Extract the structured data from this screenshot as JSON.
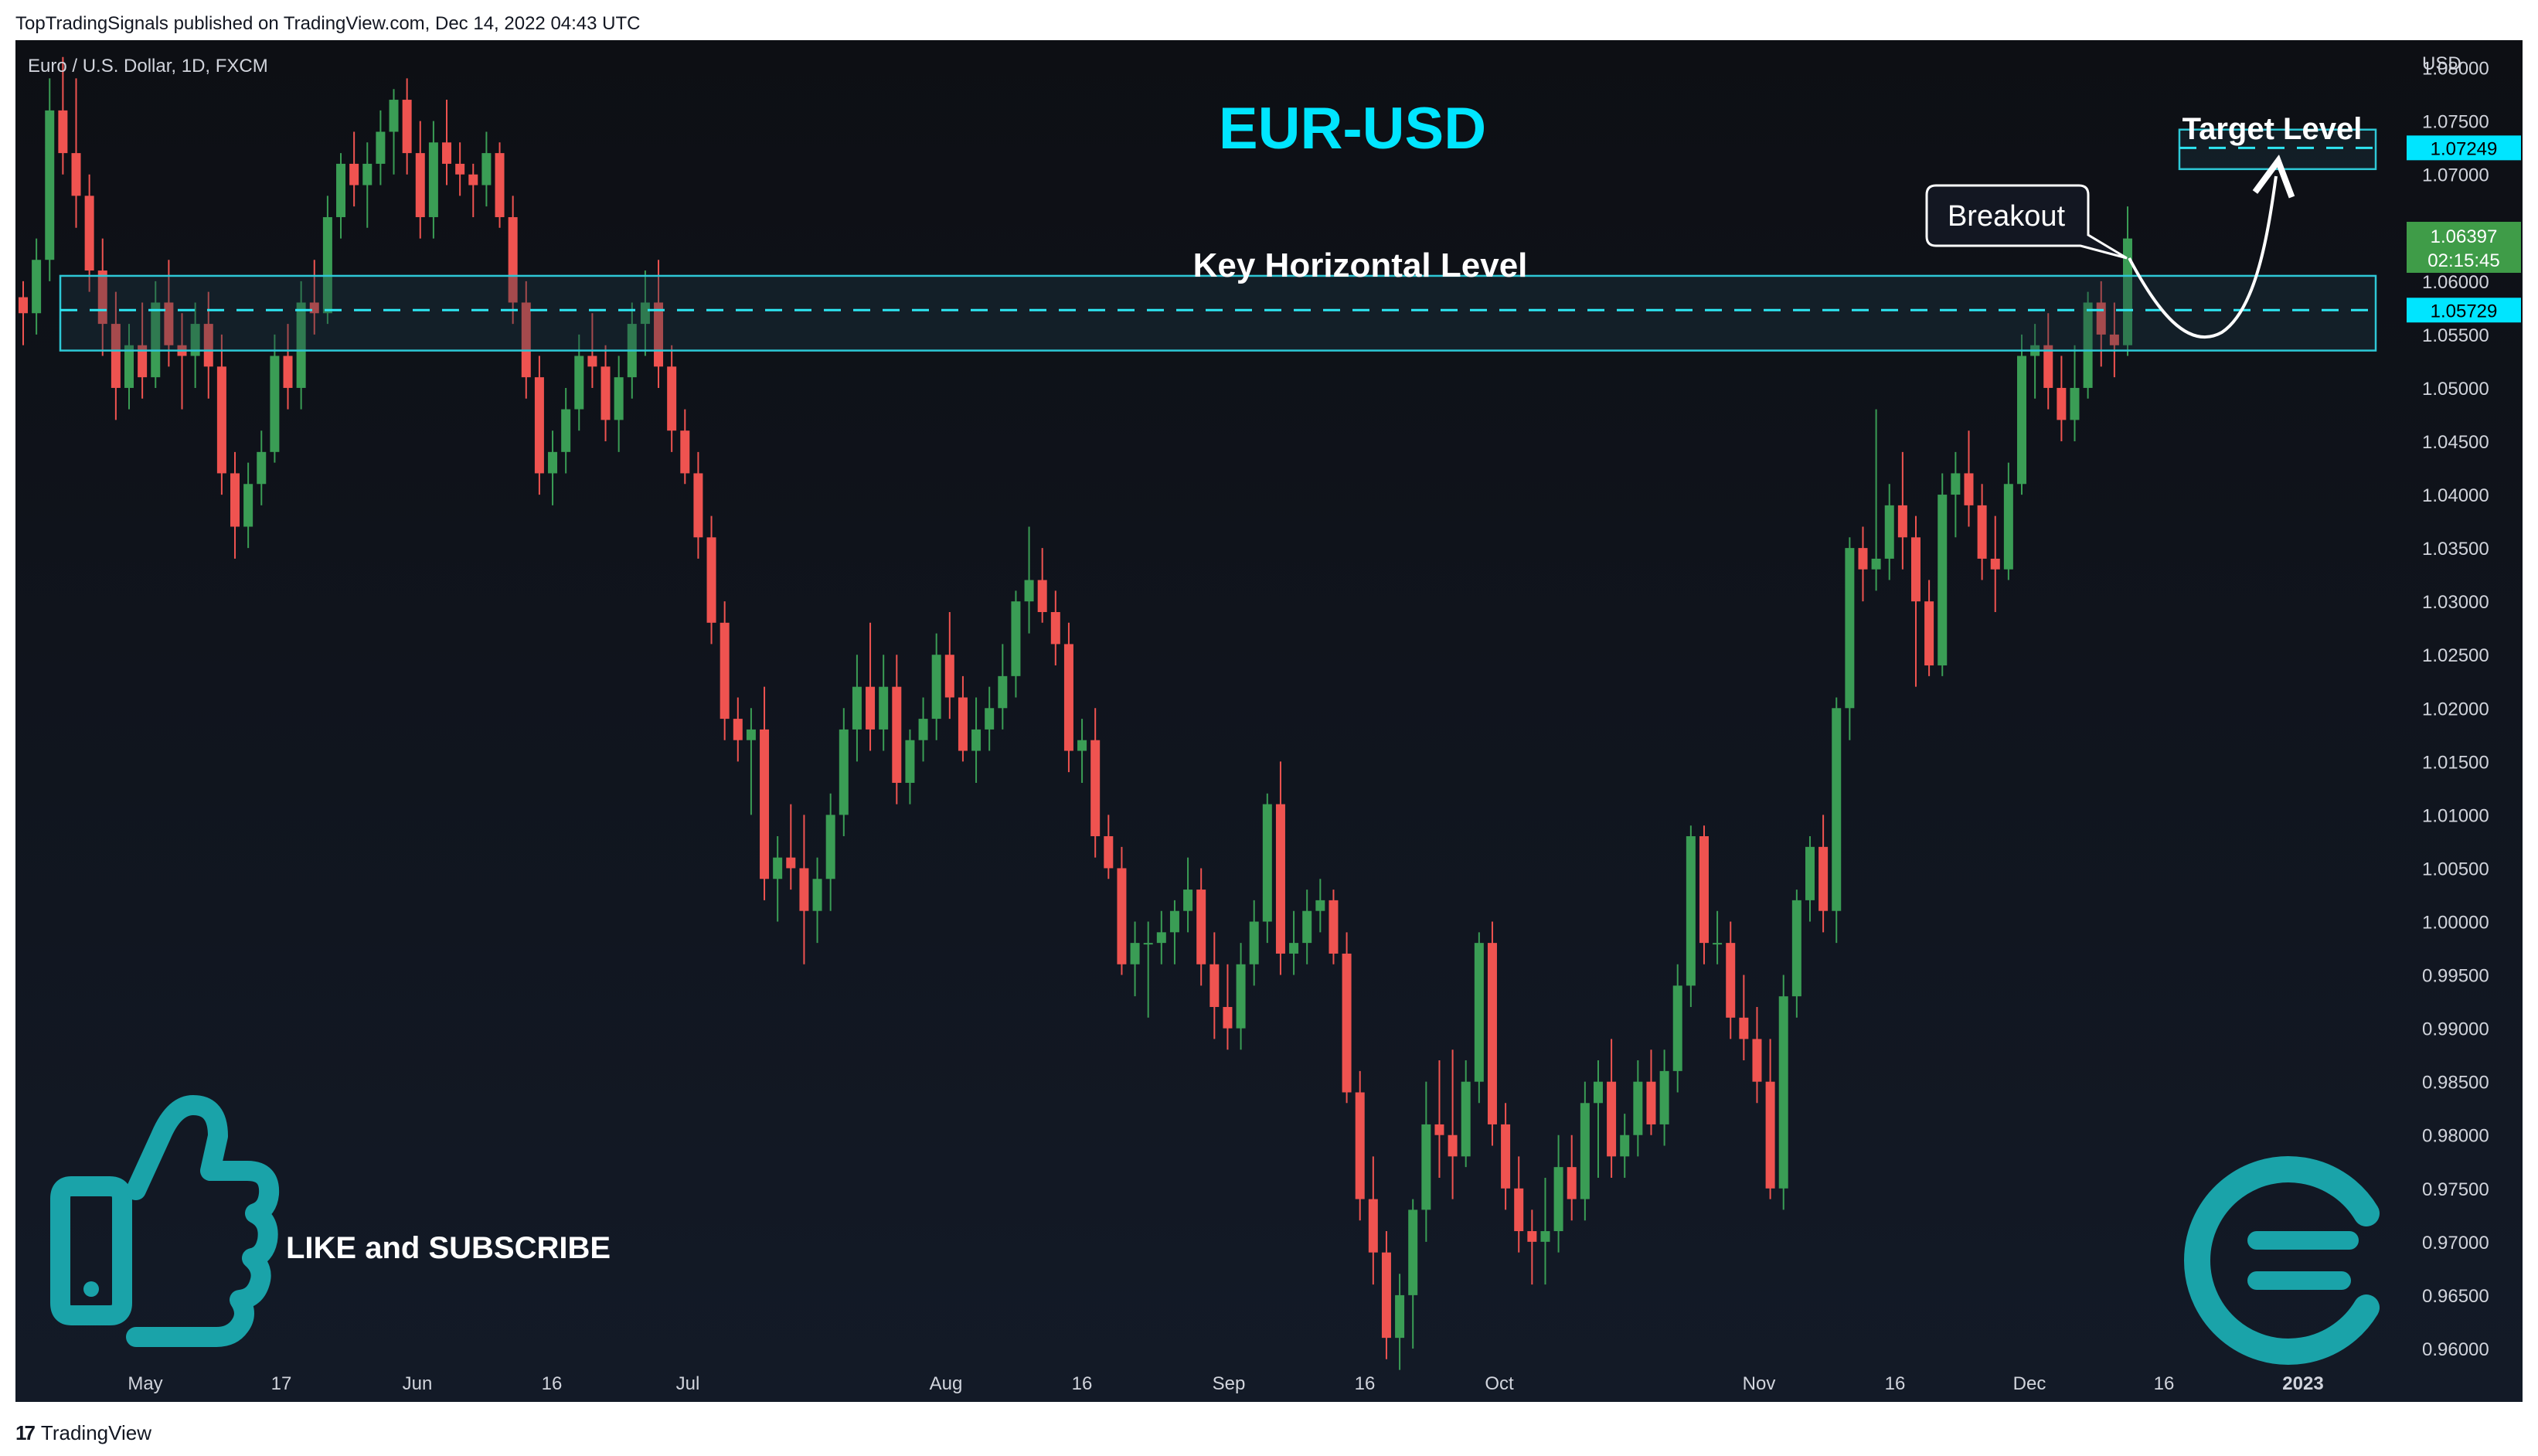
{
  "header": {
    "published": "TopTradingSignals published on TradingView.com, Dec 14, 2022 04:43 UTC"
  },
  "footer": {
    "brand": "TradingView",
    "logo_glyph": "17"
  },
  "colors": {
    "background": "#0f131c",
    "up": "#26a69a",
    "up_body": "#3a9d55",
    "down": "#ef5350",
    "accent": "#00e5ff",
    "zone_stroke": "#2ec8d6",
    "zone_fill": "#1b2733",
    "teal_icon": "#1aa3a9",
    "price_badge": "#3f9c48"
  },
  "chart_data": {
    "type": "candlestick",
    "symbol_line": "Euro / U.S. Dollar, 1D, FXCM",
    "title": "EUR-USD",
    "currency": "USD",
    "ylim": [
      0.955,
      1.082
    ],
    "y_ticks": [
      "1.08000",
      "1.07500",
      "1.07000",
      "1.06500",
      "1.06000",
      "1.05500",
      "1.05000",
      "1.04500",
      "1.04000",
      "1.03500",
      "1.03000",
      "1.02500",
      "1.02000",
      "1.01500",
      "1.01000",
      "1.00500",
      "1.00000",
      "0.99500",
      "0.99000",
      "0.98500",
      "0.98000",
      "0.97500",
      "0.97000",
      "0.96500",
      "0.96000"
    ],
    "x_ticks": [
      "May",
      "17",
      "Jun",
      "16",
      "Jul",
      "Aug",
      "16",
      "Sep",
      "16",
      "Oct",
      "Nov",
      "16",
      "Dec",
      "16",
      "2023"
    ],
    "annotations": {
      "key_level_label": "Key Horizontal Level",
      "key_level_value": "1.05729",
      "key_zone": [
        1.0535,
        1.0605
      ],
      "target_label": "Target Level",
      "target_value": "1.07249",
      "target_zone": [
        1.0705,
        1.0742
      ],
      "breakout_label": "Breakout",
      "last_price": "1.06397",
      "countdown": "02:15:45"
    },
    "promo_text": "LIKE and SUBSCRIBE",
    "candles": [
      [
        1.0585,
        1.06,
        1.054,
        1.057
      ],
      [
        1.057,
        1.064,
        1.055,
        1.062
      ],
      [
        1.062,
        1.079,
        1.06,
        1.076
      ],
      [
        1.076,
        1.081,
        1.07,
        1.072
      ],
      [
        1.072,
        1.079,
        1.065,
        1.068
      ],
      [
        1.068,
        1.07,
        1.059,
        1.061
      ],
      [
        1.061,
        1.064,
        1.053,
        1.056
      ],
      [
        1.056,
        1.059,
        1.047,
        1.05
      ],
      [
        1.05,
        1.056,
        1.048,
        1.054
      ],
      [
        1.054,
        1.058,
        1.049,
        1.051
      ],
      [
        1.051,
        1.06,
        1.05,
        1.058
      ],
      [
        1.058,
        1.062,
        1.052,
        1.054
      ],
      [
        1.054,
        1.057,
        1.048,
        1.053
      ],
      [
        1.053,
        1.058,
        1.05,
        1.056
      ],
      [
        1.056,
        1.059,
        1.049,
        1.052
      ],
      [
        1.052,
        1.055,
        1.04,
        1.042
      ],
      [
        1.042,
        1.044,
        1.034,
        1.037
      ],
      [
        1.037,
        1.043,
        1.035,
        1.041
      ],
      [
        1.041,
        1.046,
        1.039,
        1.044
      ],
      [
        1.044,
        1.055,
        1.043,
        1.053
      ],
      [
        1.053,
        1.056,
        1.048,
        1.05
      ],
      [
        1.05,
        1.06,
        1.048,
        1.058
      ],
      [
        1.058,
        1.062,
        1.055,
        1.057
      ],
      [
        1.057,
        1.068,
        1.056,
        1.066
      ],
      [
        1.066,
        1.072,
        1.064,
        1.071
      ],
      [
        1.071,
        1.074,
        1.067,
        1.069
      ],
      [
        1.069,
        1.073,
        1.065,
        1.071
      ],
      [
        1.071,
        1.076,
        1.069,
        1.074
      ],
      [
        1.074,
        1.078,
        1.07,
        1.077
      ],
      [
        1.077,
        1.079,
        1.07,
        1.072
      ],
      [
        1.072,
        1.075,
        1.064,
        1.066
      ],
      [
        1.066,
        1.075,
        1.064,
        1.073
      ],
      [
        1.073,
        1.077,
        1.069,
        1.071
      ],
      [
        1.071,
        1.073,
        1.068,
        1.07
      ],
      [
        1.07,
        1.071,
        1.066,
        1.069
      ],
      [
        1.069,
        1.074,
        1.067,
        1.072
      ],
      [
        1.072,
        1.073,
        1.065,
        1.066
      ],
      [
        1.066,
        1.068,
        1.056,
        1.058
      ],
      [
        1.058,
        1.06,
        1.049,
        1.051
      ],
      [
        1.051,
        1.053,
        1.04,
        1.042
      ],
      [
        1.042,
        1.046,
        1.039,
        1.044
      ],
      [
        1.044,
        1.05,
        1.042,
        1.048
      ],
      [
        1.048,
        1.055,
        1.046,
        1.053
      ],
      [
        1.053,
        1.057,
        1.05,
        1.052
      ],
      [
        1.052,
        1.054,
        1.045,
        1.047
      ],
      [
        1.047,
        1.053,
        1.044,
        1.051
      ],
      [
        1.051,
        1.058,
        1.049,
        1.056
      ],
      [
        1.056,
        1.061,
        1.053,
        1.058
      ],
      [
        1.058,
        1.062,
        1.05,
        1.052
      ],
      [
        1.052,
        1.054,
        1.044,
        1.046
      ],
      [
        1.046,
        1.048,
        1.041,
        1.042
      ],
      [
        1.042,
        1.044,
        1.034,
        1.036
      ],
      [
        1.036,
        1.038,
        1.026,
        1.028
      ],
      [
        1.028,
        1.03,
        1.017,
        1.019
      ],
      [
        1.019,
        1.021,
        1.015,
        1.017
      ],
      [
        1.017,
        1.02,
        1.01,
        1.018
      ],
      [
        1.018,
        1.022,
        1.002,
        1.004
      ],
      [
        1.004,
        1.008,
        1.0,
        1.006
      ],
      [
        1.006,
        1.011,
        1.003,
        1.005
      ],
      [
        1.005,
        1.01,
        0.996,
        1.001
      ],
      [
        1.001,
        1.006,
        0.998,
        1.004
      ],
      [
        1.004,
        1.012,
        1.001,
        1.01
      ],
      [
        1.01,
        1.02,
        1.008,
        1.018
      ],
      [
        1.018,
        1.025,
        1.015,
        1.022
      ],
      [
        1.022,
        1.028,
        1.016,
        1.018
      ],
      [
        1.018,
        1.025,
        1.016,
        1.022
      ],
      [
        1.022,
        1.025,
        1.011,
        1.013
      ],
      [
        1.013,
        1.018,
        1.011,
        1.017
      ],
      [
        1.017,
        1.021,
        1.015,
        1.019
      ],
      [
        1.019,
        1.027,
        1.017,
        1.025
      ],
      [
        1.025,
        1.029,
        1.019,
        1.021
      ],
      [
        1.021,
        1.023,
        1.015,
        1.016
      ],
      [
        1.016,
        1.021,
        1.013,
        1.018
      ],
      [
        1.018,
        1.022,
        1.016,
        1.02
      ],
      [
        1.02,
        1.026,
        1.018,
        1.023
      ],
      [
        1.023,
        1.031,
        1.021,
        1.03
      ],
      [
        1.03,
        1.037,
        1.027,
        1.032
      ],
      [
        1.032,
        1.035,
        1.028,
        1.029
      ],
      [
        1.029,
        1.031,
        1.024,
        1.026
      ],
      [
        1.026,
        1.028,
        1.014,
        1.016
      ],
      [
        1.016,
        1.019,
        1.013,
        1.017
      ],
      [
        1.017,
        1.02,
        1.006,
        1.008
      ],
      [
        1.008,
        1.01,
        1.004,
        1.005
      ],
      [
        1.005,
        1.007,
        0.995,
        0.996
      ],
      [
        0.996,
        1.0,
        0.993,
        0.998
      ],
      [
        0.998,
        1.0,
        0.991,
        0.998
      ],
      [
        0.998,
        1.001,
        0.996,
        0.999
      ],
      [
        0.999,
        1.002,
        0.996,
        1.001
      ],
      [
        1.001,
        1.006,
        0.999,
        1.003
      ],
      [
        1.003,
        1.005,
        0.994,
        0.996
      ],
      [
        0.996,
        0.999,
        0.989,
        0.992
      ],
      [
        0.992,
        0.996,
        0.988,
        0.99
      ],
      [
        0.99,
        0.998,
        0.988,
        0.996
      ],
      [
        0.996,
        1.002,
        0.994,
        1.0
      ],
      [
        1.0,
        1.012,
        0.998,
        1.011
      ],
      [
        1.011,
        1.015,
        0.995,
        0.997
      ],
      [
        0.997,
        1.001,
        0.995,
        0.998
      ],
      [
        0.998,
        1.003,
        0.996,
        1.001
      ],
      [
        1.001,
        1.004,
        0.999,
        1.002
      ],
      [
        1.002,
        1.003,
        0.996,
        0.997
      ],
      [
        0.997,
        0.999,
        0.983,
        0.984
      ],
      [
        0.984,
        0.986,
        0.972,
        0.974
      ],
      [
        0.974,
        0.978,
        0.966,
        0.969
      ],
      [
        0.969,
        0.971,
        0.959,
        0.961
      ],
      [
        0.961,
        0.967,
        0.958,
        0.965
      ],
      [
        0.965,
        0.974,
        0.96,
        0.973
      ],
      [
        0.973,
        0.985,
        0.97,
        0.981
      ],
      [
        0.981,
        0.987,
        0.976,
        0.98
      ],
      [
        0.98,
        0.988,
        0.974,
        0.978
      ],
      [
        0.978,
        0.987,
        0.977,
        0.985
      ],
      [
        0.985,
        0.999,
        0.983,
        0.998
      ],
      [
        0.998,
        1.0,
        0.979,
        0.981
      ],
      [
        0.981,
        0.983,
        0.973,
        0.975
      ],
      [
        0.975,
        0.978,
        0.969,
        0.971
      ],
      [
        0.971,
        0.973,
        0.966,
        0.97
      ],
      [
        0.97,
        0.976,
        0.966,
        0.971
      ],
      [
        0.971,
        0.98,
        0.969,
        0.977
      ],
      [
        0.977,
        0.98,
        0.972,
        0.974
      ],
      [
        0.974,
        0.985,
        0.972,
        0.983
      ],
      [
        0.983,
        0.987,
        0.976,
        0.985
      ],
      [
        0.985,
        0.989,
        0.976,
        0.978
      ],
      [
        0.978,
        0.982,
        0.976,
        0.98
      ],
      [
        0.98,
        0.987,
        0.978,
        0.985
      ],
      [
        0.985,
        0.988,
        0.98,
        0.981
      ],
      [
        0.981,
        0.988,
        0.979,
        0.986
      ],
      [
        0.986,
        0.996,
        0.984,
        0.994
      ],
      [
        0.994,
        1.009,
        0.992,
        1.008
      ],
      [
        1.008,
        1.009,
        0.996,
        0.998
      ],
      [
        0.998,
        1.001,
        0.996,
        0.998
      ],
      [
        0.998,
        1.0,
        0.989,
        0.991
      ],
      [
        0.991,
        0.995,
        0.987,
        0.989
      ],
      [
        0.989,
        0.992,
        0.983,
        0.985
      ],
      [
        0.985,
        0.989,
        0.974,
        0.975
      ],
      [
        0.975,
        0.995,
        0.973,
        0.993
      ],
      [
        0.993,
        1.003,
        0.991,
        1.002
      ],
      [
        1.002,
        1.008,
        1.0,
        1.007
      ],
      [
        1.007,
        1.01,
        0.999,
        1.001
      ],
      [
        1.001,
        1.021,
        0.998,
        1.02
      ],
      [
        1.02,
        1.036,
        1.017,
        1.035
      ],
      [
        1.035,
        1.037,
        1.03,
        1.033
      ],
      [
        1.033,
        1.048,
        1.031,
        1.034
      ],
      [
        1.034,
        1.041,
        1.032,
        1.039
      ],
      [
        1.039,
        1.044,
        1.033,
        1.036
      ],
      [
        1.036,
        1.038,
        1.022,
        1.03
      ],
      [
        1.03,
        1.032,
        1.023,
        1.024
      ],
      [
        1.024,
        1.042,
        1.023,
        1.04
      ],
      [
        1.04,
        1.044,
        1.036,
        1.042
      ],
      [
        1.042,
        1.046,
        1.037,
        1.039
      ],
      [
        1.039,
        1.041,
        1.032,
        1.034
      ],
      [
        1.034,
        1.038,
        1.029,
        1.033
      ],
      [
        1.033,
        1.043,
        1.032,
        1.041
      ],
      [
        1.041,
        1.055,
        1.04,
        1.053
      ],
      [
        1.053,
        1.056,
        1.049,
        1.054
      ],
      [
        1.054,
        1.057,
        1.048,
        1.05
      ],
      [
        1.05,
        1.053,
        1.045,
        1.047
      ],
      [
        1.047,
        1.054,
        1.045,
        1.05
      ],
      [
        1.05,
        1.059,
        1.049,
        1.058
      ],
      [
        1.058,
        1.06,
        1.052,
        1.055
      ],
      [
        1.055,
        1.058,
        1.051,
        1.054
      ],
      [
        1.054,
        1.067,
        1.053,
        1.064
      ]
    ]
  }
}
